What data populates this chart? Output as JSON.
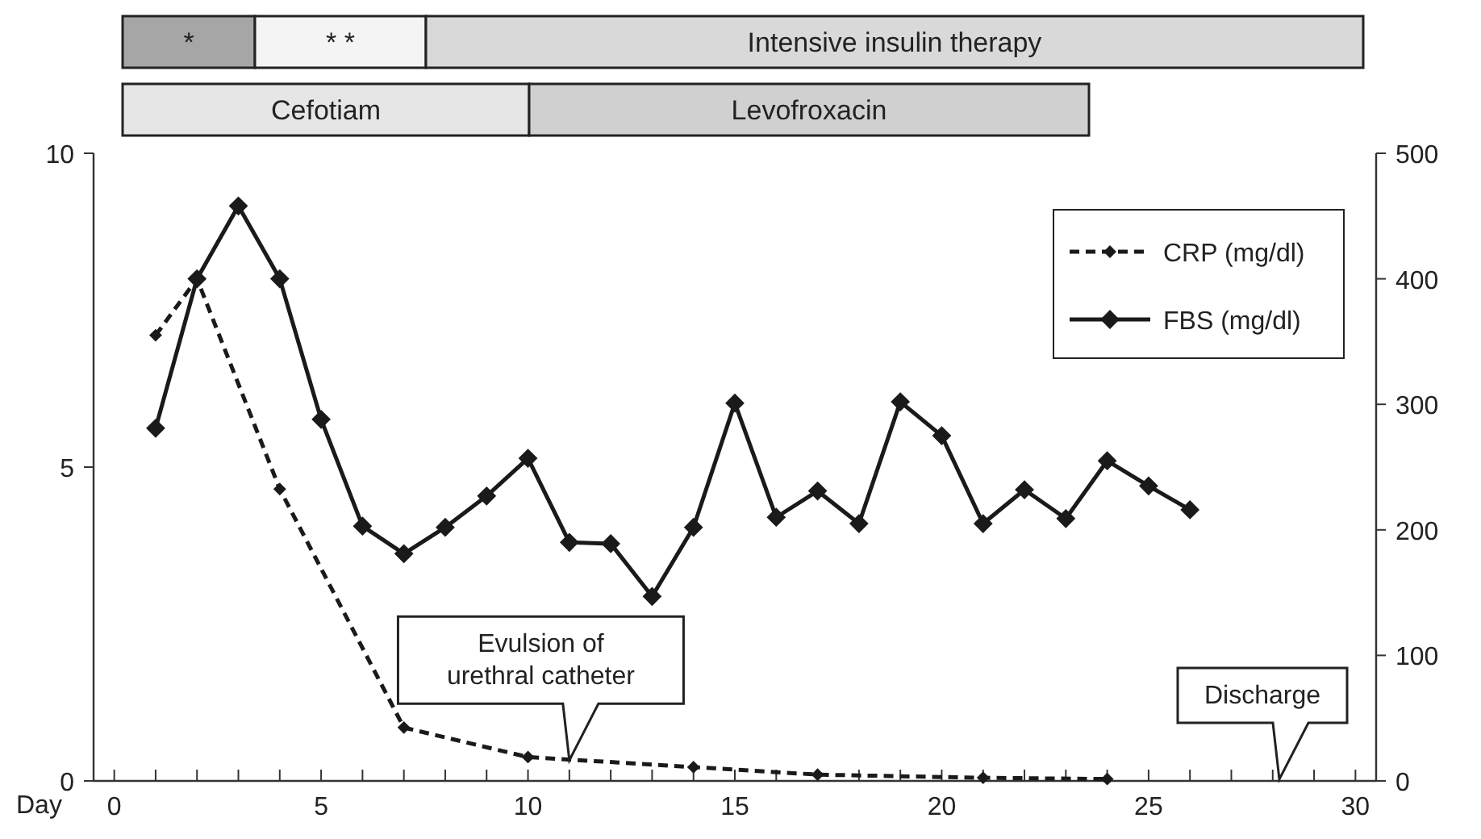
{
  "chart_data": [
    {
      "type": "other",
      "annotations": [
        "*",
        "* *",
        "Intensive insulin therapy",
        "Cefotiam",
        "Levofroxacin"
      ]
    },
    {
      "type": "line",
      "xlabel": "Day",
      "xlim": [
        -0.5,
        30.5
      ],
      "xticks": [
        0,
        {
          "value": 1,
          "label": null
        },
        {
          "value": 2,
          "label": null
        },
        {
          "value": 3,
          "label": null
        },
        {
          "value": 4,
          "label": null
        },
        5,
        {
          "value": 6,
          "label": null
        },
        {
          "value": 7,
          "label": null
        },
        {
          "value": 8,
          "label": null
        },
        {
          "value": 9,
          "label": null
        },
        10,
        {
          "value": 11,
          "label": null
        },
        {
          "value": 12,
          "label": null
        },
        {
          "value": 13,
          "label": null
        },
        {
          "value": 14,
          "label": null
        },
        15,
        {
          "value": 16,
          "label": null
        },
        {
          "value": 17,
          "label": null
        },
        {
          "value": 18,
          "label": null
        },
        {
          "value": 19,
          "label": null
        },
        20,
        {
          "value": 21,
          "label": null
        },
        {
          "value": 22,
          "label": null
        },
        {
          "value": 23,
          "label": null
        },
        {
          "value": 24,
          "label": null
        },
        25,
        {
          "value": 26,
          "label": null
        },
        {
          "value": 27,
          "label": null
        },
        {
          "value": 28,
          "label": null
        },
        {
          "value": 29,
          "label": null
        },
        30
      ],
      "ylim": [
        0,
        10
      ],
      "yticks": [
        0,
        5,
        10
      ],
      "y2lim": [
        0,
        500
      ],
      "y2ticks": [
        0,
        100,
        200,
        300,
        400,
        500
      ],
      "grid": false,
      "legend": "top right",
      "marker": "diamond",
      "series": [
        {
          "name": "CRP (mg/dl)",
          "color": "#1a1a1a",
          "line_style": "dashed",
          "x": [
            1,
            2,
            4,
            7,
            10,
            14,
            17,
            21,
            24
          ],
          "values": [
            7.1,
            8.0,
            4.65,
            0.85,
            0.38,
            0.22,
            0.1,
            0.05,
            0.03
          ]
        },
        {
          "name": "FBS (mg/dl)",
          "color": "#1a1a1a",
          "line_style": "solid",
          "axis": "y2",
          "x": [
            1,
            2,
            3,
            4,
            5,
            6,
            7,
            8,
            9,
            10,
            11,
            12,
            13,
            14,
            15,
            16,
            17,
            18,
            19,
            20,
            21,
            22,
            23,
            24,
            25,
            26
          ],
          "values": [
            281,
            400,
            458,
            400,
            288,
            203,
            181,
            202,
            227,
            257,
            190,
            189,
            147,
            202,
            301,
            210,
            231,
            205,
            302,
            275,
            205,
            232,
            209,
            255,
            235,
            216
          ]
        }
      ],
      "annotations": [
        {
          "text": "Evulsion of urethral catheter",
          "x": 11,
          "y": 0.33
        },
        "Discharge"
      ]
    }
  ]
}
